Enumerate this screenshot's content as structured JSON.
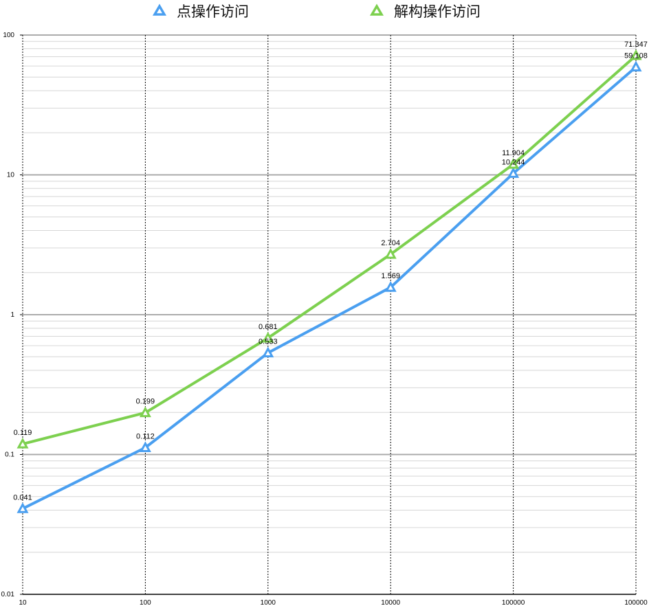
{
  "chart_data": {
    "type": "line",
    "title": "",
    "xlabel": "",
    "ylabel": "",
    "x_scale": "category",
    "y_scale": "log",
    "ylim": [
      0.01,
      100
    ],
    "categories": [
      "10",
      "100",
      "1000",
      "10000",
      "100000",
      "100000"
    ],
    "y_ticks": [
      "0.01",
      "0.1",
      "1",
      "10",
      "100"
    ],
    "grid": true,
    "legend_position": "top-center",
    "series": [
      {
        "name": "点操作访问",
        "color": "#4a9ff0",
        "values": [
          0.041,
          0.112,
          0.533,
          1.569,
          10.244,
          59.108
        ],
        "labels": [
          "0.041",
          "0.112",
          "0.533",
          "1.569",
          "10.244",
          "59.108"
        ]
      },
      {
        "name": "解构操作访问",
        "color": "#7dd04f",
        "values": [
          0.119,
          0.199,
          0.681,
          2.704,
          11.904,
          71.347
        ],
        "labels": [
          "0.119",
          "0.199",
          "0.681",
          "2.704",
          "11.904",
          "71.347"
        ]
      }
    ]
  }
}
